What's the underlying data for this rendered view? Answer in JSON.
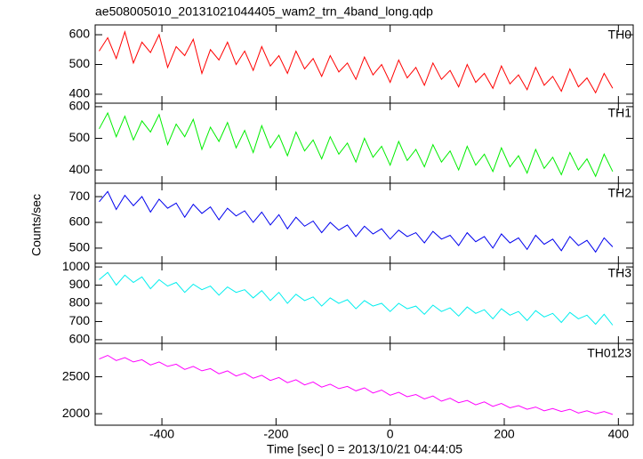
{
  "chart_data": {
    "type": "line",
    "title": "ae508005010_20131021044405_wam2_trn_4band_long.qdp",
    "xlabel": "Time [sec] 0 = 2013/10/21 04:44:05",
    "ylabel": "Counts/sec",
    "x": [
      -510,
      -495,
      -480,
      -465,
      -450,
      -435,
      -420,
      -405,
      -390,
      -375,
      -360,
      -345,
      -330,
      -315,
      -300,
      -285,
      -270,
      -255,
      -240,
      -225,
      -210,
      -195,
      -180,
      -165,
      -150,
      -135,
      -120,
      -105,
      -90,
      -75,
      -60,
      -45,
      -30,
      -15,
      0,
      15,
      30,
      45,
      60,
      75,
      90,
      105,
      120,
      135,
      150,
      165,
      180,
      195,
      210,
      225,
      240,
      255,
      270,
      285,
      300,
      315,
      330,
      345,
      360,
      375,
      390
    ],
    "xlim": [
      -517,
      426
    ],
    "xticks": [
      -400,
      -200,
      0,
      200,
      400
    ],
    "series": [
      {
        "name": "TH0",
        "color": "#ff0000",
        "ylim": [
          370,
          633
        ],
        "yticks": [
          400,
          500,
          600
        ],
        "values": [
          545,
          590,
          520,
          610,
          505,
          575,
          540,
          600,
          490,
          560,
          530,
          585,
          470,
          550,
          515,
          575,
          500,
          545,
          480,
          560,
          495,
          530,
          470,
          545,
          485,
          520,
          460,
          530,
          475,
          505,
          450,
          525,
          465,
          500,
          440,
          515,
          455,
          490,
          430,
          505,
          450,
          480,
          425,
          500,
          440,
          470,
          420,
          495,
          435,
          465,
          415,
          490,
          430,
          460,
          410,
          485,
          425,
          455,
          405,
          470,
          420
        ]
      },
      {
        "name": "TH1",
        "color": "#00ee00",
        "ylim": [
          358,
          611
        ],
        "yticks": [
          400,
          500,
          600
        ],
        "values": [
          530,
          580,
          505,
          570,
          495,
          555,
          520,
          575,
          480,
          545,
          505,
          560,
          465,
          535,
          490,
          550,
          470,
          525,
          455,
          540,
          470,
          510,
          445,
          520,
          460,
          495,
          435,
          505,
          450,
          485,
          425,
          500,
          440,
          475,
          415,
          490,
          430,
          465,
          410,
          480,
          425,
          460,
          400,
          475,
          415,
          450,
          395,
          470,
          410,
          445,
          390,
          465,
          405,
          440,
          385,
          455,
          400,
          435,
          380,
          450,
          395
        ]
      },
      {
        "name": "TH2",
        "color": "#0000ee",
        "ylim": [
          441,
          752
        ],
        "yticks": [
          500,
          600,
          700
        ],
        "values": [
          680,
          720,
          650,
          705,
          665,
          700,
          640,
          690,
          655,
          675,
          620,
          670,
          635,
          660,
          610,
          655,
          625,
          645,
          600,
          640,
          590,
          630,
          575,
          620,
          585,
          605,
          560,
          600,
          570,
          590,
          545,
          585,
          555,
          575,
          535,
          570,
          545,
          560,
          520,
          565,
          535,
          550,
          510,
          560,
          525,
          545,
          500,
          555,
          520,
          540,
          495,
          550,
          515,
          535,
          490,
          545,
          510,
          530,
          485,
          540,
          505
        ]
      },
      {
        "name": "TH3",
        "color": "#00eeee",
        "ylim": [
          580,
          1020
        ],
        "yticks": [
          600,
          700,
          800,
          900,
          1000
        ],
        "values": [
          930,
          970,
          900,
          955,
          915,
          945,
          880,
          930,
          895,
          915,
          860,
          905,
          875,
          895,
          845,
          890,
          860,
          875,
          830,
          870,
          815,
          860,
          800,
          850,
          815,
          835,
          785,
          830,
          800,
          820,
          770,
          815,
          785,
          800,
          755,
          800,
          770,
          785,
          740,
          790,
          755,
          775,
          730,
          780,
          745,
          765,
          715,
          770,
          735,
          755,
          705,
          760,
          725,
          745,
          695,
          750,
          715,
          735,
          685,
          740,
          680
        ]
      },
      {
        "name": "TH0123",
        "color": "#ff00ff",
        "ylim": [
          1845,
          2952
        ],
        "yticks": [
          2000,
          2500
        ],
        "values": [
          2740,
          2790,
          2720,
          2760,
          2700,
          2730,
          2660,
          2700,
          2640,
          2670,
          2600,
          2640,
          2580,
          2610,
          2540,
          2580,
          2510,
          2550,
          2480,
          2520,
          2450,
          2490,
          2420,
          2460,
          2390,
          2430,
          2360,
          2400,
          2340,
          2370,
          2310,
          2350,
          2280,
          2320,
          2250,
          2290,
          2230,
          2260,
          2200,
          2240,
          2170,
          2210,
          2150,
          2180,
          2120,
          2160,
          2100,
          2140,
          2080,
          2110,
          2060,
          2090,
          2040,
          2070,
          2030,
          2060,
          2010,
          2040,
          2000,
          2030,
          1990
        ]
      }
    ]
  }
}
